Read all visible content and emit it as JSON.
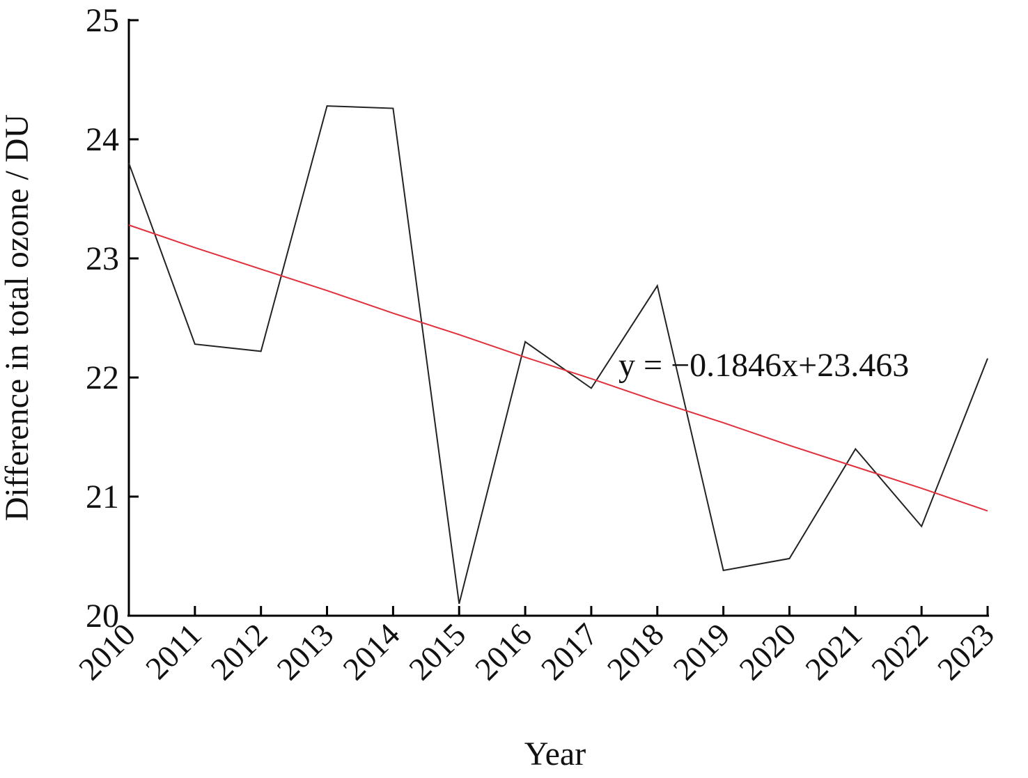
{
  "chart_data": {
    "type": "line",
    "x_label": "Year",
    "y_label": "Difference in total ozone / DU",
    "annotation": "y = −0.1846x+23.463",
    "categories": [
      "2010",
      "2011",
      "2012",
      "2013",
      "2014",
      "2015",
      "2016",
      "2017",
      "2018",
      "2019",
      "2020",
      "2021",
      "2022",
      "2023"
    ],
    "series": [
      {
        "color": "#222222",
        "values": [
          23.8,
          22.28,
          22.22,
          24.28,
          24.26,
          20.1,
          22.3,
          21.91,
          22.77,
          20.38,
          20.48,
          21.4,
          20.75,
          22.16
        ]
      },
      {
        "color": "#e0303c",
        "values": [
          23.28,
          23.09,
          22.91,
          22.73,
          22.54,
          22.36,
          22.17,
          21.99,
          21.8,
          21.62,
          21.43,
          21.25,
          21.07,
          20.88
        ]
      }
    ],
    "ylim": [
      20,
      25
    ],
    "yticks": [
      20,
      21,
      22,
      23,
      24,
      25
    ]
  }
}
